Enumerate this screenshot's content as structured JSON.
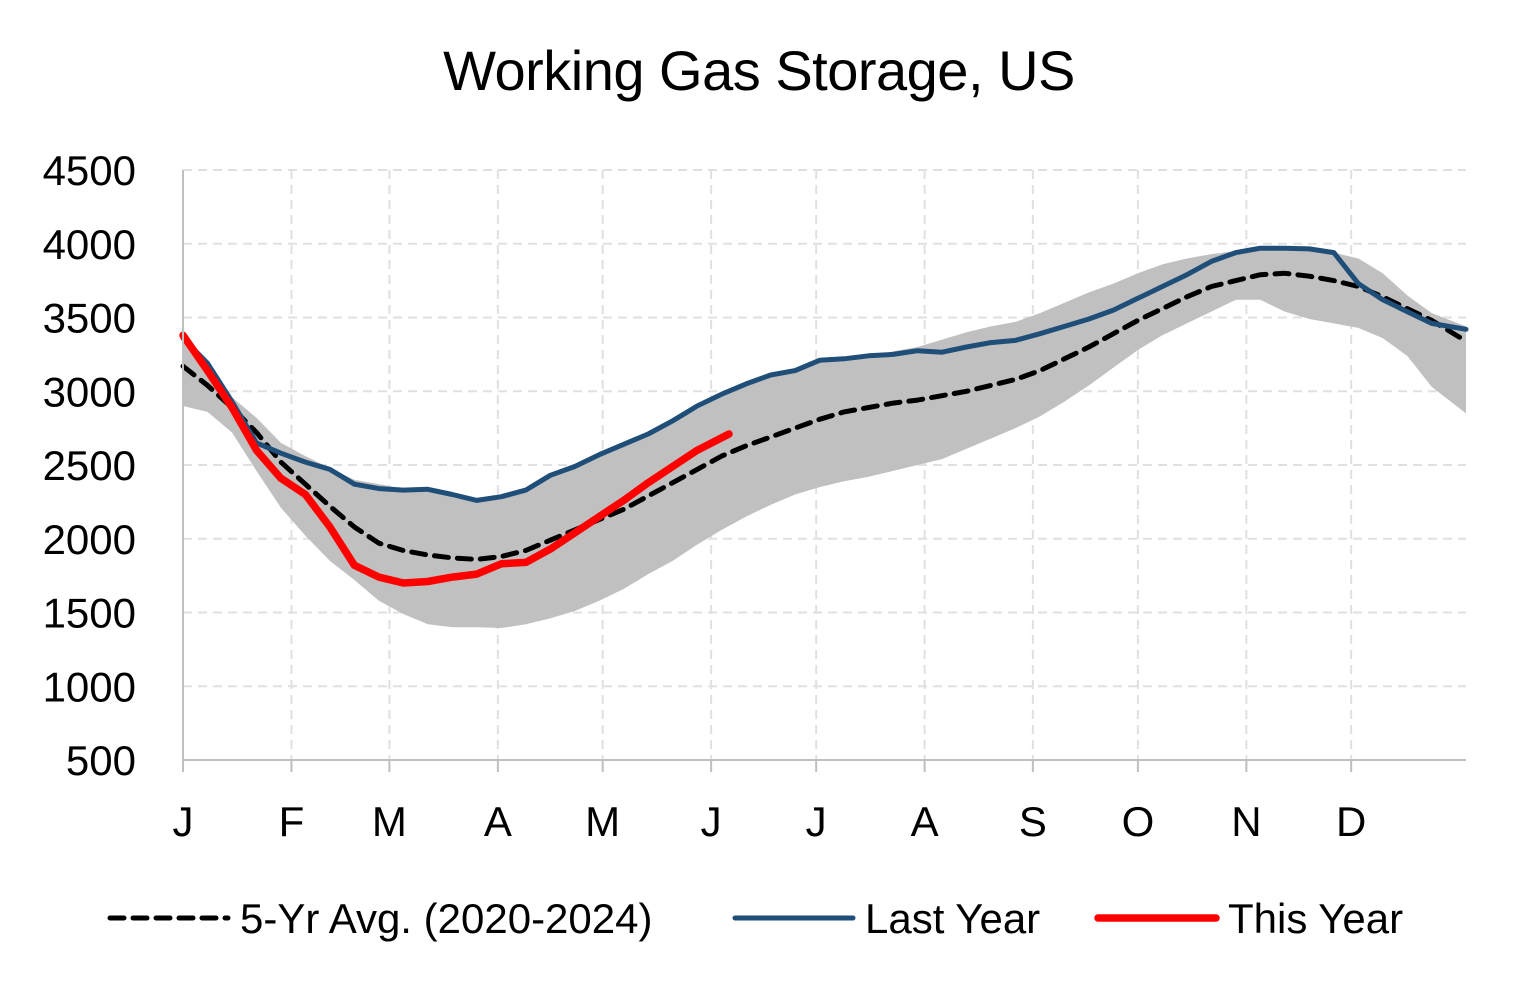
{
  "chart_data": {
    "type": "line",
    "title": "Working Gas Storage, US",
    "xlabel": "",
    "ylabel": "",
    "ylim": [
      500,
      4500
    ],
    "yticks": [
      500,
      1000,
      1500,
      2000,
      2500,
      3000,
      3500,
      4000,
      4500
    ],
    "xlim": [
      0,
      52.4
    ],
    "month_ticks": [
      {
        "label": "J",
        "week": 0
      },
      {
        "label": "F",
        "week": 4.43
      },
      {
        "label": "M",
        "week": 8.43
      },
      {
        "label": "A",
        "week": 12.86
      },
      {
        "label": "M",
        "week": 17.14
      },
      {
        "label": "J",
        "week": 21.57
      },
      {
        "label": "J",
        "week": 25.86
      },
      {
        "label": "A",
        "week": 30.29
      },
      {
        "label": "S",
        "week": 34.71
      },
      {
        "label": "O",
        "week": 39.0
      },
      {
        "label": "N",
        "week": 43.43
      },
      {
        "label": "D",
        "week": 47.71
      }
    ],
    "grid": true,
    "legend_position": "bottom",
    "colors": {
      "five_year_avg": "#000000",
      "last_year": "#1F4E79",
      "this_year": "#FF0000",
      "range_band": "#C0C0C0",
      "grid": "#E0E0E0"
    },
    "range_band": {
      "x": [
        0,
        1,
        2,
        3,
        4,
        5,
        6,
        7,
        8,
        9,
        10,
        11,
        12,
        13,
        14,
        15,
        16,
        17,
        18,
        19,
        20,
        21,
        22,
        23,
        24,
        25,
        26,
        27,
        28,
        29,
        30,
        31,
        32,
        33,
        34,
        35,
        36,
        37,
        38,
        39,
        40,
        41,
        42,
        43,
        44,
        45,
        46,
        47,
        48,
        49,
        50,
        51,
        52.4
      ],
      "low": [
        2900,
        2860,
        2720,
        2460,
        2210,
        2020,
        1850,
        1720,
        1580,
        1490,
        1420,
        1400,
        1400,
        1395,
        1420,
        1460,
        1510,
        1580,
        1660,
        1760,
        1850,
        1960,
        2060,
        2150,
        2230,
        2300,
        2350,
        2390,
        2420,
        2460,
        2500,
        2540,
        2610,
        2680,
        2750,
        2830,
        2930,
        3040,
        3160,
        3280,
        3380,
        3460,
        3540,
        3620,
        3620,
        3540,
        3490,
        3460,
        3430,
        3360,
        3240,
        3030,
        2850
      ],
      "high": [
        3380,
        3200,
        2960,
        2820,
        2650,
        2560,
        2480,
        2400,
        2370,
        2340,
        2350,
        2310,
        2270,
        2290,
        2340,
        2430,
        2490,
        2560,
        2630,
        2700,
        2790,
        2880,
        2960,
        3040,
        3110,
        3140,
        3200,
        3220,
        3240,
        3270,
        3300,
        3350,
        3400,
        3440,
        3470,
        3530,
        3600,
        3670,
        3730,
        3800,
        3860,
        3900,
        3930,
        3950,
        3970,
        3980,
        3970,
        3940,
        3900,
        3800,
        3650,
        3530,
        3440
      ]
    },
    "series": [
      {
        "name": "5-Yr Avg. (2020-2024)",
        "style": "dashed",
        "x": [
          0,
          1,
          2,
          3,
          4,
          5,
          6,
          7,
          8,
          9,
          10,
          11,
          12,
          13,
          14,
          15,
          16,
          17,
          18,
          19,
          20,
          21,
          22,
          23,
          24,
          25,
          26,
          27,
          28,
          29,
          30,
          31,
          32,
          33,
          34,
          35,
          36,
          37,
          38,
          39,
          40,
          41,
          42,
          43,
          44,
          45,
          46,
          47,
          48,
          49,
          50,
          51,
          52.4
        ],
        "values": [
          3170,
          3040,
          2890,
          2720,
          2520,
          2370,
          2220,
          2080,
          1970,
          1920,
          1890,
          1870,
          1860,
          1880,
          1920,
          1990,
          2060,
          2130,
          2200,
          2290,
          2380,
          2470,
          2560,
          2630,
          2690,
          2750,
          2810,
          2860,
          2890,
          2920,
          2940,
          2970,
          3000,
          3040,
          3080,
          3140,
          3220,
          3300,
          3390,
          3480,
          3560,
          3640,
          3710,
          3750,
          3790,
          3800,
          3780,
          3750,
          3710,
          3640,
          3560,
          3480,
          3340
        ]
      },
      {
        "name": "Last Year",
        "style": "solid",
        "x": [
          0,
          1,
          2,
          3,
          4,
          5,
          6,
          7,
          8,
          9,
          10,
          11,
          12,
          13,
          14,
          15,
          16,
          17,
          18,
          19,
          20,
          21,
          22,
          23,
          24,
          25,
          26,
          27,
          28,
          29,
          30,
          31,
          32,
          33,
          34,
          35,
          36,
          37,
          38,
          39,
          40,
          41,
          42,
          43,
          44,
          45,
          46,
          47,
          48,
          49,
          50,
          51,
          52.4
        ],
        "values": [
          3360,
          3190,
          2930,
          2650,
          2580,
          2520,
          2470,
          2370,
          2340,
          2330,
          2335,
          2300,
          2260,
          2285,
          2330,
          2430,
          2490,
          2570,
          2640,
          2710,
          2800,
          2900,
          2980,
          3050,
          3110,
          3140,
          3210,
          3220,
          3240,
          3250,
          3275,
          3265,
          3300,
          3330,
          3345,
          3390,
          3440,
          3490,
          3550,
          3630,
          3710,
          3790,
          3880,
          3940,
          3970,
          3970,
          3965,
          3940,
          3730,
          3620,
          3540,
          3460,
          3420
        ]
      },
      {
        "name": "This Year",
        "style": "solid-thick",
        "x": [
          0,
          1,
          2,
          3,
          4,
          5,
          6,
          7,
          8,
          9,
          10,
          11,
          12,
          13,
          14,
          15,
          16,
          17,
          18,
          19,
          20,
          21,
          22.3
        ],
        "values": [
          3380,
          3140,
          2890,
          2600,
          2410,
          2300,
          2080,
          1820,
          1740,
          1700,
          1710,
          1740,
          1760,
          1830,
          1840,
          1930,
          2040,
          2150,
          2260,
          2380,
          2490,
          2600,
          2710
        ]
      }
    ]
  }
}
